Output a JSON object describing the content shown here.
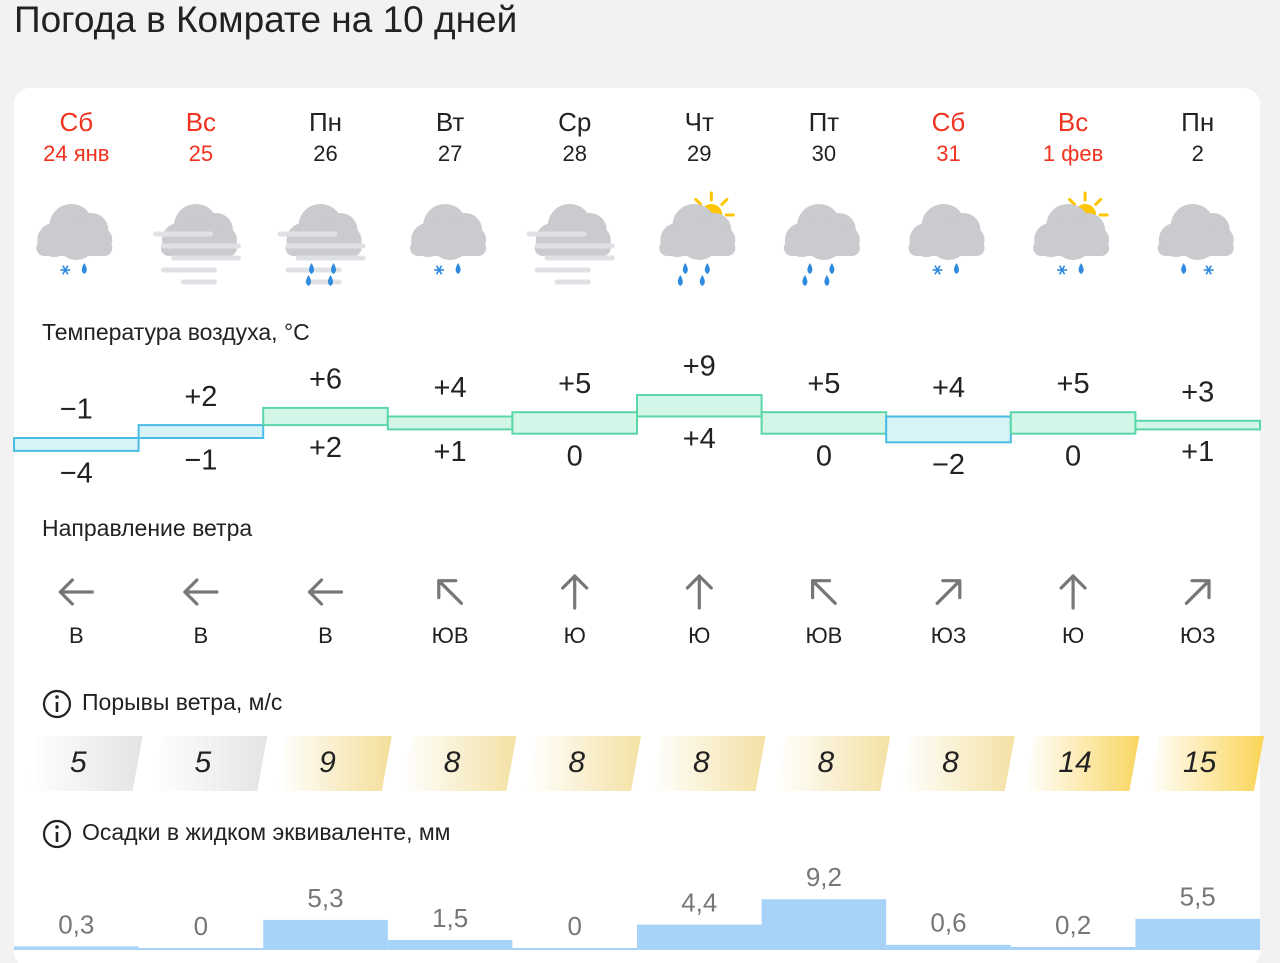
{
  "header": {
    "title": "Погода в Комрате на 10 дней"
  },
  "days": [
    {
      "weekday": "Сб",
      "date": "24 янв",
      "weekend": true,
      "icon": {
        "sun": false,
        "fog": false,
        "precip": [
          "snow",
          "rain"
        ]
      }
    },
    {
      "weekday": "Вс",
      "date": "25",
      "weekend": true,
      "icon": {
        "sun": false,
        "fog": true,
        "precip": []
      }
    },
    {
      "weekday": "Пн",
      "date": "26",
      "weekend": false,
      "icon": {
        "sun": false,
        "fog": true,
        "precip": [
          "rain",
          "rain"
        ]
      }
    },
    {
      "weekday": "Вт",
      "date": "27",
      "weekend": false,
      "icon": {
        "sun": false,
        "fog": false,
        "precip": [
          "snow",
          "rain"
        ]
      }
    },
    {
      "weekday": "Ср",
      "date": "28",
      "weekend": false,
      "icon": {
        "sun": false,
        "fog": true,
        "precip": []
      }
    },
    {
      "weekday": "Чт",
      "date": "29",
      "weekend": false,
      "icon": {
        "sun": true,
        "fog": false,
        "precip": [
          "rain",
          "rain"
        ]
      }
    },
    {
      "weekday": "Пт",
      "date": "30",
      "weekend": false,
      "icon": {
        "sun": false,
        "fog": false,
        "precip": [
          "rain",
          "rain"
        ]
      }
    },
    {
      "weekday": "Сб",
      "date": "31",
      "weekend": true,
      "icon": {
        "sun": false,
        "fog": false,
        "precip": [
          "snow",
          "rain"
        ]
      }
    },
    {
      "weekday": "Вс",
      "date": "1 фев",
      "weekend": true,
      "icon": {
        "sun": true,
        "fog": false,
        "precip": [
          "snow",
          "rain"
        ]
      }
    },
    {
      "weekday": "Пн",
      "date": "2",
      "weekend": false,
      "icon": {
        "sun": false,
        "fog": false,
        "precip": [
          "rain",
          "snow"
        ]
      }
    }
  ],
  "temperature": {
    "title": "Температура воздуха, °С",
    "max": {
      "values": [
        -1,
        2,
        6,
        4,
        5,
        9,
        5,
        4,
        5,
        3
      ],
      "value_labels": [
        "−1",
        "+2",
        "+6",
        "+4",
        "+5",
        "+9",
        "+5",
        "+4",
        "+5",
        "+3"
      ]
    },
    "min": {
      "values": [
        -4,
        -1,
        2,
        1,
        0,
        4,
        0,
        -2,
        0,
        1
      ],
      "value_labels": [
        "−4",
        "−1",
        "+2",
        "+1",
        "0",
        "+4",
        "0",
        "−2",
        "0",
        "+1"
      ]
    }
  },
  "wind": {
    "title": "Направление ветра",
    "directions": [
      "В",
      "В",
      "В",
      "ЮВ",
      "Ю",
      "Ю",
      "ЮВ",
      "ЮЗ",
      "Ю",
      "ЮЗ"
    ],
    "arrow_angles": [
      270,
      270,
      270,
      315,
      0,
      0,
      315,
      45,
      0,
      45
    ]
  },
  "gusts": {
    "title": "Порывы ветра, м/с",
    "values": [
      5,
      5,
      9,
      8,
      8,
      8,
      8,
      8,
      14,
      15
    ]
  },
  "precipitation": {
    "title": "Осадки в жидком эквиваленте, мм",
    "values": [
      0.3,
      0,
      5.3,
      1.5,
      0,
      4.4,
      9.2,
      0.6,
      0.2,
      5.5
    ],
    "value_labels": [
      "0,3",
      "0",
      "5,3",
      "1,5",
      "0",
      "4,4",
      "9,2",
      "0,6",
      "0,2",
      "5,5"
    ]
  }
}
